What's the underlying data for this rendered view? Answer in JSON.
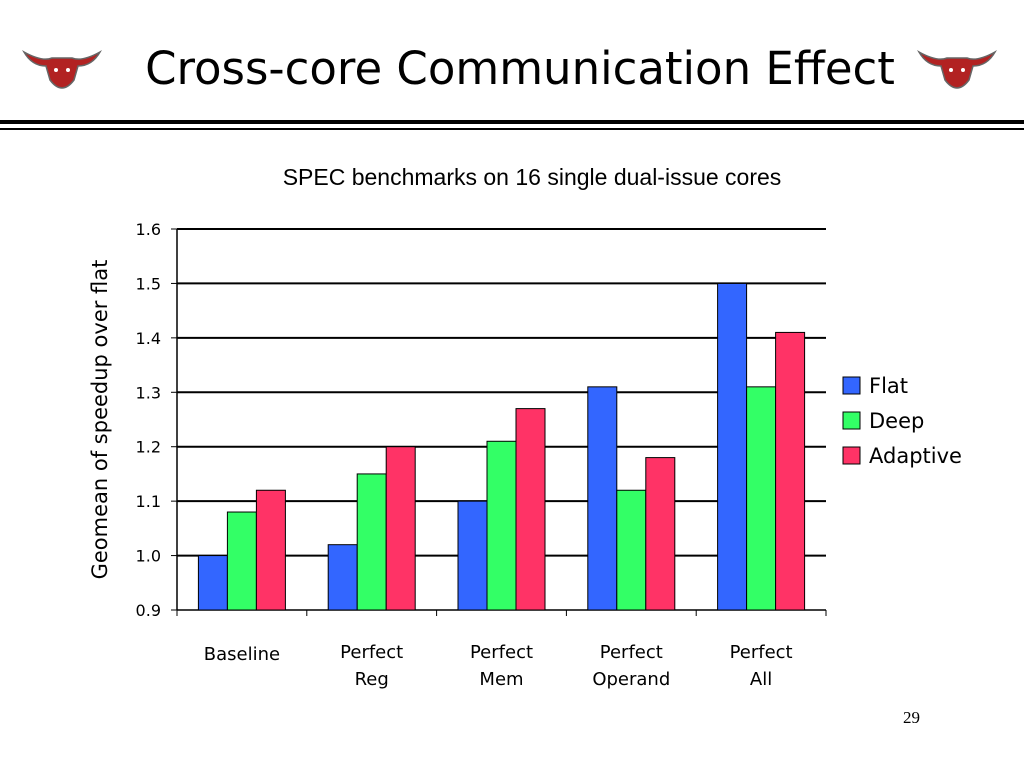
{
  "slide": {
    "title": "Cross-core Communication Effect",
    "page_number": "29",
    "logo_icon": "longhorn-icon"
  },
  "colors": {
    "flat": "#3366ff",
    "deep": "#33ff66",
    "adaptive": "#ff3366",
    "logo": "#b22222",
    "rule": "#000000"
  },
  "chart_data": {
    "type": "bar",
    "title": "SPEC benchmarks on 16 single dual-issue cores",
    "ylabel": "Geomean of speedup over flat",
    "xlabel": "",
    "ylim": [
      0.9,
      1.6
    ],
    "yticks": [
      "0.9",
      "1.0",
      "1.1",
      "1.2",
      "1.3",
      "1.4",
      "1.5",
      "1.6"
    ],
    "grid": true,
    "legend_position": "right",
    "categories": [
      [
        "Baseline"
      ],
      [
        "Perfect",
        "Reg"
      ],
      [
        "Perfect",
        "Mem"
      ],
      [
        "Perfect",
        "Operand"
      ],
      [
        "Perfect",
        "All"
      ]
    ],
    "series": [
      {
        "name": "Flat",
        "color": "#3366ff",
        "values": [
          1.0,
          1.02,
          1.1,
          1.31,
          1.5
        ]
      },
      {
        "name": "Deep",
        "color": "#33ff66",
        "values": [
          1.08,
          1.15,
          1.21,
          1.12,
          1.31
        ]
      },
      {
        "name": "Adaptive",
        "color": "#ff3366",
        "values": [
          1.12,
          1.2,
          1.27,
          1.18,
          1.41
        ]
      }
    ]
  }
}
